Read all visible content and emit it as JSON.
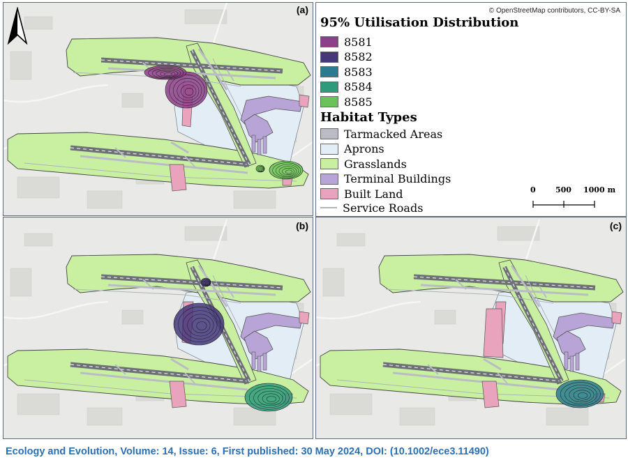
{
  "panels": [
    {
      "label": "(a)",
      "ud": [
        "8581",
        "8585"
      ]
    },
    {
      "label": "(b)",
      "ud": [
        "8582",
        "8584"
      ]
    },
    {
      "label": "(c)",
      "ud": [
        "8583"
      ]
    }
  ],
  "legend": {
    "ud_title": "95% Utilisation Distribution",
    "ud_items": [
      {
        "label": "8581",
        "color": "#8e3f8a"
      },
      {
        "label": "8582",
        "color": "#45377a"
      },
      {
        "label": "8583",
        "color": "#2a7b8e"
      },
      {
        "label": "8584",
        "color": "#2e9b7a"
      },
      {
        "label": "8585",
        "color": "#6cc25a"
      }
    ],
    "habitat_title": "Habitat Types",
    "habitat_items": [
      {
        "label": "Tarmacked Areas",
        "color": "#b9bcc4"
      },
      {
        "label": "Aprons",
        "color": "#e3edf5"
      },
      {
        "label": "Grasslands",
        "color": "#c9f0a1"
      },
      {
        "label": "Terminal Buildings",
        "color": "#b8a4d6"
      },
      {
        "label": "Built Land",
        "color": "#e9a3bd"
      }
    ],
    "roads_label": "Service Roads",
    "roads_color": "#aeb4b8"
  },
  "copyright": "© OpenStreetMap contributors, CC-BY-SA",
  "scale": {
    "labels": [
      "0",
      "500",
      "1000 m"
    ]
  },
  "caption": "Ecology and Evolution, Volume: 14, Issue: 6, First published: 30 May 2024, DOI: (10.1002/ece3.11490)"
}
